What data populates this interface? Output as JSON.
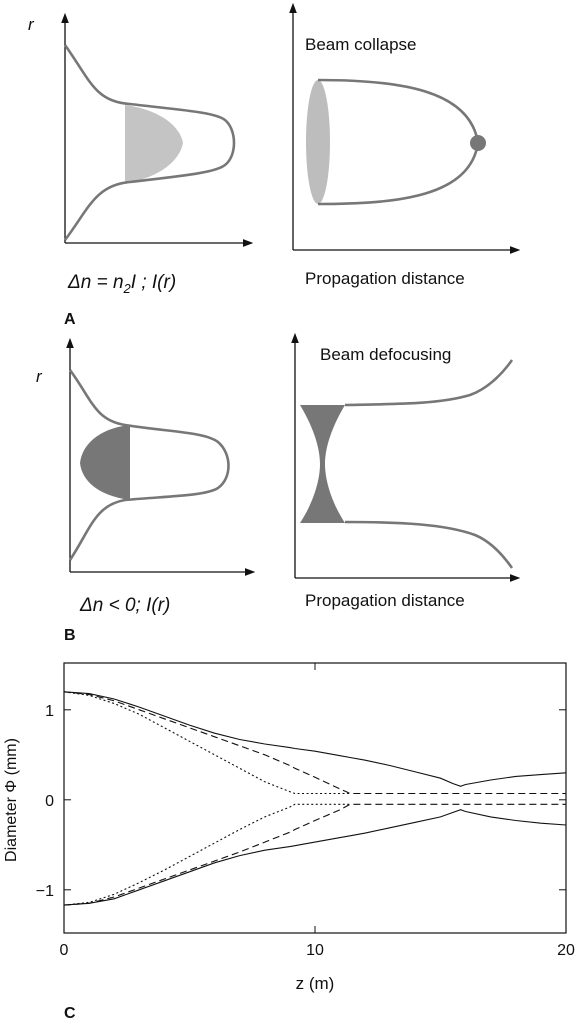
{
  "panel_a": {
    "label": "A",
    "axis_label": "r",
    "right_title": "Beam collapse",
    "right_xlabel": "Propagation distance",
    "formula": [
      "Δn = n",
      "2",
      "I ; I(r)"
    ]
  },
  "panel_b": {
    "label": "B",
    "axis_label": "r",
    "right_title": "Beam defocusing",
    "right_xlabel": "Propagation distance",
    "formula": [
      "Δn < 0; I(r)"
    ]
  },
  "panel_c": {
    "label": "C"
  },
  "chart_data": {
    "type": "line",
    "xlabel": "z (m)",
    "ylabel": "Diameter Φ (mm)",
    "x": [
      0,
      1,
      2,
      3,
      4,
      5,
      6,
      7,
      8,
      9,
      9.2,
      10,
      11,
      11.4,
      12,
      13,
      14,
      15,
      15.5,
      15.8,
      16,
      17,
      18,
      19,
      20
    ],
    "xlim": [
      0,
      20
    ],
    "xticks": [
      0,
      10,
      20
    ],
    "ylim": [
      -1.48,
      1.52
    ],
    "yticks": [
      {
        "value": -1,
        "label": "−1"
      },
      0,
      1
    ],
    "series": [
      {
        "color": "#111111",
        "style": "solid",
        "values": [
          1.2,
          1.18,
          1.12,
          1.03,
          0.93,
          0.83,
          0.74,
          0.67,
          0.62,
          0.58,
          0.57,
          0.54,
          0.49,
          0.47,
          0.44,
          0.38,
          0.31,
          0.24,
          0.18,
          0.15,
          0.17,
          0.22,
          0.26,
          0.28,
          0.3
        ]
      },
      {
        "color": "#111111",
        "style": "solid",
        "values": [
          -1.17,
          -1.15,
          -1.1,
          -1.0,
          -0.9,
          -0.8,
          -0.7,
          -0.62,
          -0.56,
          -0.52,
          -0.51,
          -0.47,
          -0.42,
          -0.4,
          -0.37,
          -0.31,
          -0.25,
          -0.19,
          -0.14,
          -0.11,
          -0.13,
          -0.19,
          -0.23,
          -0.26,
          -0.28
        ]
      },
      {
        "color": "#111111",
        "style": "dashed",
        "values": [
          1.2,
          1.17,
          1.1,
          1.0,
          0.9,
          0.8,
          0.7,
          0.6,
          0.5,
          0.38,
          0.35,
          0.25,
          0.12,
          0.07,
          0.07,
          0.07,
          0.07,
          0.07,
          0.07,
          0.07,
          0.07,
          0.07,
          0.07,
          0.07,
          0.07
        ]
      },
      {
        "color": "#111111",
        "style": "dashed",
        "values": [
          -1.17,
          -1.15,
          -1.08,
          -0.98,
          -0.88,
          -0.78,
          -0.68,
          -0.58,
          -0.47,
          -0.36,
          -0.33,
          -0.23,
          -0.11,
          -0.05,
          -0.05,
          -0.05,
          -0.05,
          -0.05,
          -0.05,
          -0.05,
          -0.05,
          -0.05,
          -0.05,
          -0.05,
          -0.05
        ]
      },
      {
        "color": "#111111",
        "style": "dotted",
        "values": [
          1.2,
          1.16,
          1.07,
          0.95,
          0.8,
          0.65,
          0.5,
          0.35,
          0.2,
          0.09,
          0.07,
          0.07,
          0.07,
          0.07,
          null,
          null,
          null,
          null,
          null,
          null,
          null,
          null,
          null,
          null,
          null
        ]
      },
      {
        "color": "#111111",
        "style": "dotted",
        "values": [
          -1.17,
          -1.14,
          -1.05,
          -0.92,
          -0.78,
          -0.63,
          -0.48,
          -0.33,
          -0.19,
          -0.08,
          -0.05,
          -0.05,
          -0.05,
          -0.05,
          null,
          null,
          null,
          null,
          null,
          null,
          null,
          null,
          null,
          null,
          null
        ]
      }
    ]
  }
}
